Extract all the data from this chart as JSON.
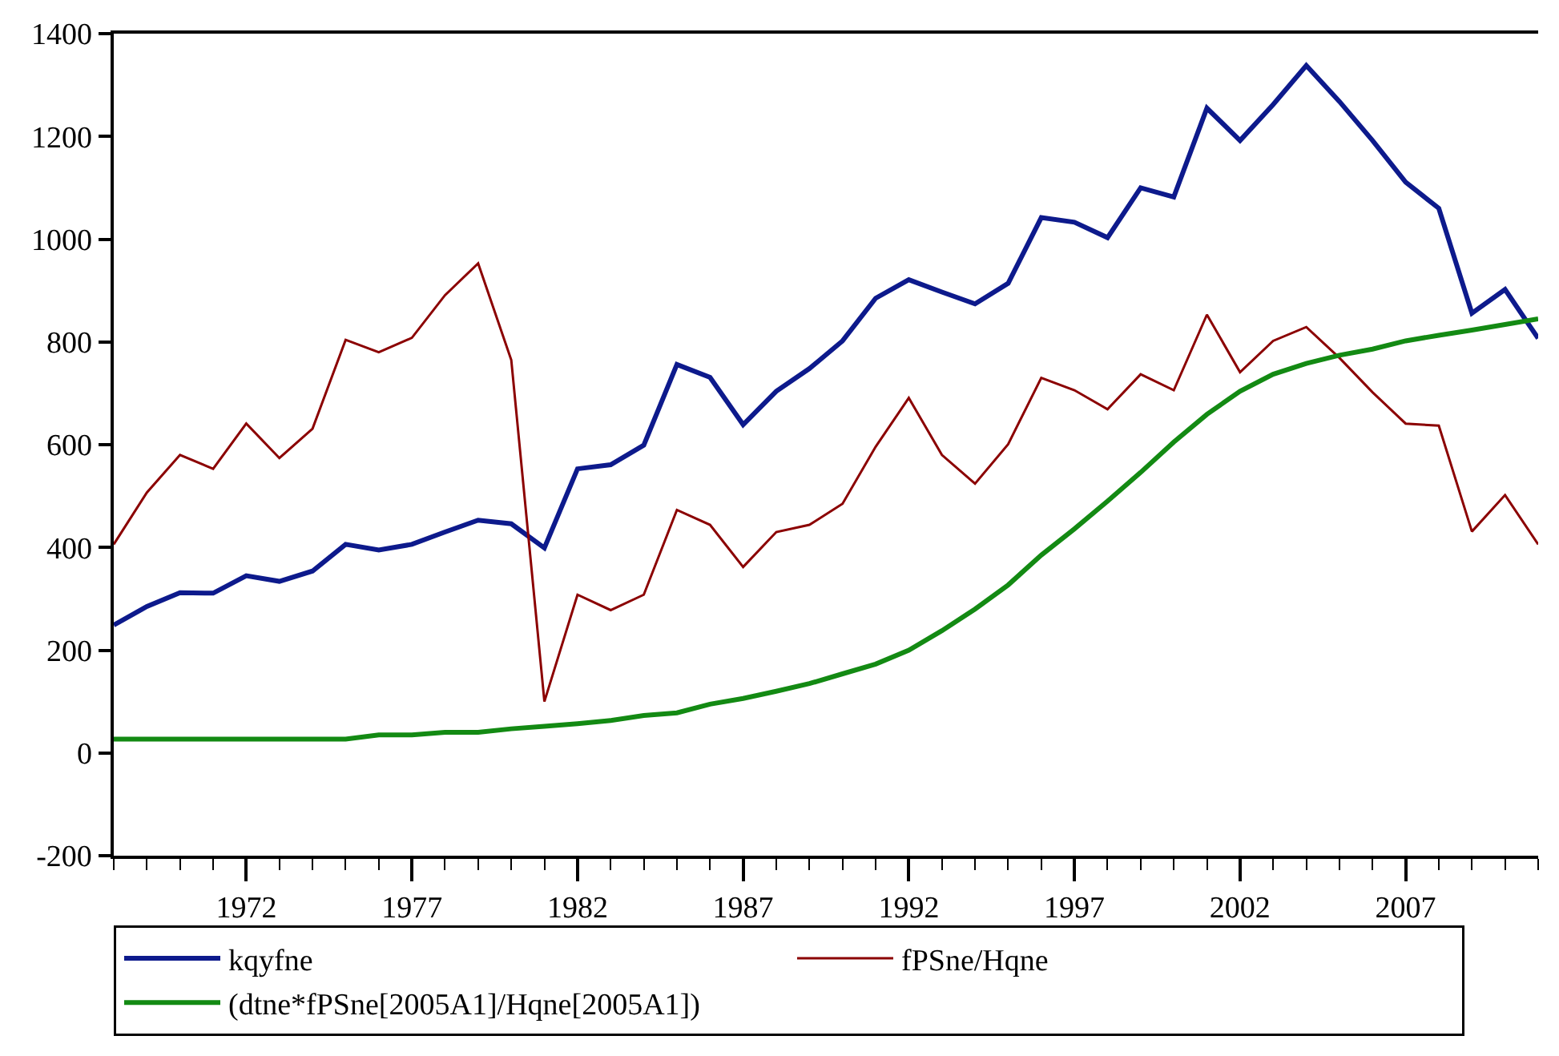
{
  "chart_data": {
    "type": "line",
    "x": [
      1968,
      1969,
      1970,
      1971,
      1972,
      1973,
      1974,
      1975,
      1976,
      1977,
      1978,
      1979,
      1980,
      1981,
      1982,
      1983,
      1984,
      1985,
      1986,
      1987,
      1988,
      1989,
      1990,
      1991,
      1992,
      1993,
      1994,
      1995,
      1996,
      1997,
      1998,
      1999,
      2000,
      2001,
      2002,
      2003,
      2004,
      2005,
      2006,
      2007,
      2008,
      2009,
      2010,
      2011
    ],
    "series": [
      {
        "name": "kqyfne",
        "color": "#0d1a8c",
        "values": [
          249,
          285,
          312,
          311,
          345,
          334,
          354,
          406,
          395,
          406,
          430,
          453,
          446,
          399,
          553,
          561,
          599,
          756,
          731,
          639,
          704,
          748,
          802,
          885,
          921,
          897,
          874,
          914,
          1042,
          1033,
          1003,
          1100,
          1082,
          1255,
          1192,
          1262,
          1338,
          1268,
          1192,
          1111,
          1060,
          856,
          902,
          807
        ]
      },
      {
        "name": "fPSne/Hqne",
        "color": "#8b0000",
        "values": [
          406,
          507,
          580,
          553,
          641,
          574,
          631,
          804,
          780,
          808,
          891,
          953,
          765,
          100,
          308,
          278,
          308,
          473,
          444,
          362,
          430,
          444,
          485,
          596,
          691,
          580,
          524,
          601,
          730,
          706,
          669,
          737,
          706,
          853,
          741,
          802,
          829,
          769,
          702,
          641,
          637,
          431,
          502,
          406
        ]
      },
      {
        "name": "(dtne*fPSne[2005A1]/Hqne[2005A1])",
        "color": "#138a13",
        "values": [
          27,
          27,
          27,
          27,
          27,
          27,
          27,
          27,
          35,
          35,
          40,
          40,
          47,
          52,
          57,
          63,
          73,
          78,
          95,
          106,
          120,
          135,
          154,
          173,
          200,
          238,
          280,
          327,
          385,
          436,
          490,
          546,
          605,
          659,
          704,
          737,
          758,
          774,
          786,
          802,
          813,
          823,
          834,
          845
        ]
      }
    ],
    "xlim": [
      1968,
      2011
    ],
    "xticks": [
      {
        "value": 1968,
        "label": null
      },
      {
        "value": 1969,
        "label": null
      },
      {
        "value": 1970,
        "label": null
      },
      {
        "value": 1971,
        "label": null
      },
      1972,
      {
        "value": 1973,
        "label": null
      },
      {
        "value": 1974,
        "label": null
      },
      {
        "value": 1975,
        "label": null
      },
      {
        "value": 1976,
        "label": null
      },
      1977,
      {
        "value": 1978,
        "label": null
      },
      {
        "value": 1979,
        "label": null
      },
      {
        "value": 1980,
        "label": null
      },
      {
        "value": 1981,
        "label": null
      },
      1982,
      {
        "value": 1983,
        "label": null
      },
      {
        "value": 1984,
        "label": null
      },
      {
        "value": 1985,
        "label": null
      },
      {
        "value": 1986,
        "label": null
      },
      1987,
      {
        "value": 1988,
        "label": null
      },
      {
        "value": 1989,
        "label": null
      },
      {
        "value": 1990,
        "label": null
      },
      {
        "value": 1991,
        "label": null
      },
      1992,
      {
        "value": 1993,
        "label": null
      },
      {
        "value": 1994,
        "label": null
      },
      {
        "value": 1995,
        "label": null
      },
      {
        "value": 1996,
        "label": null
      },
      1997,
      {
        "value": 1998,
        "label": null
      },
      {
        "value": 1999,
        "label": null
      },
      {
        "value": 2000,
        "label": null
      },
      {
        "value": 2001,
        "label": null
      },
      2002,
      {
        "value": 2003,
        "label": null
      },
      {
        "value": 2004,
        "label": null
      },
      {
        "value": 2005,
        "label": null
      },
      {
        "value": 2006,
        "label": null
      },
      2007,
      {
        "value": 2008,
        "label": null
      },
      {
        "value": 2009,
        "label": null
      },
      {
        "value": 2010,
        "label": null
      },
      {
        "value": 2011,
        "label": null
      }
    ],
    "ylim": [
      -200,
      1400
    ],
    "yticks": [
      -200,
      0,
      200,
      400,
      600,
      800,
      1000,
      1200,
      1400
    ],
    "legend": "bottom",
    "marker": "none",
    "line_style": "solid"
  }
}
